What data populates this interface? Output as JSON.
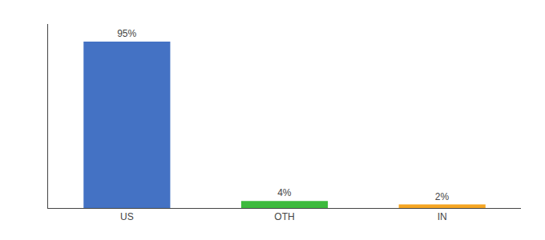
{
  "chart_data": {
    "type": "bar",
    "categories": [
      "US",
      "OTH",
      "IN"
    ],
    "values": [
      95,
      4,
      2
    ],
    "value_labels": [
      "95%",
      "4%",
      "2%"
    ],
    "data_labels": true,
    "colors": [
      "#4472c4",
      "#3dba3d",
      "#f5a623"
    ],
    "ylim": [
      0,
      105
    ],
    "grid": false,
    "tick_labels": "x"
  }
}
